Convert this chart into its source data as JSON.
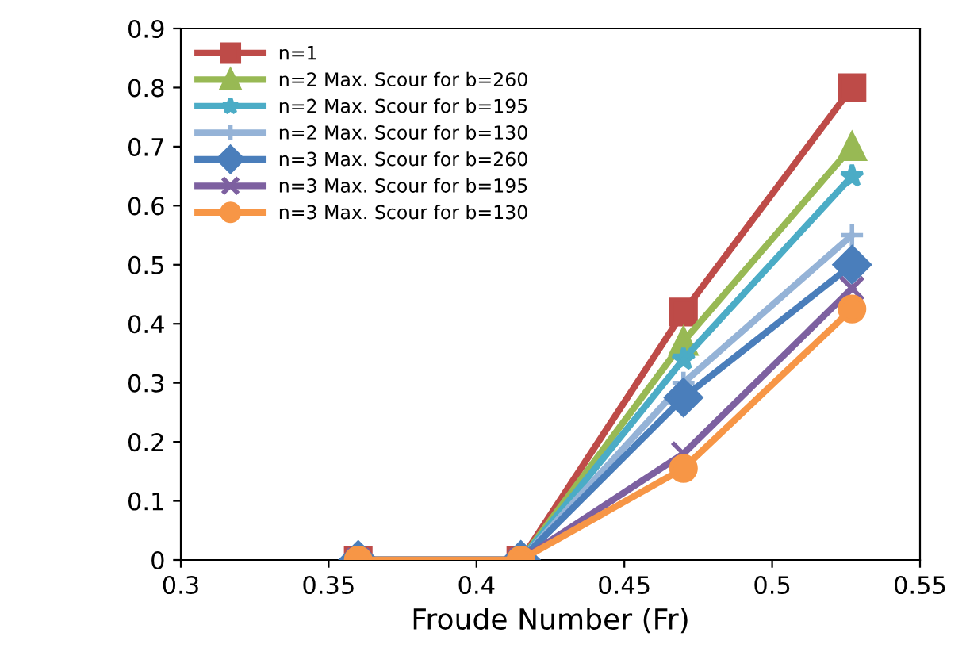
{
  "chart_data": {
    "type": "line",
    "xlabel": "Froude Number (Fr)",
    "x": [
      0.36,
      0.415,
      0.47,
      0.527
    ],
    "xlim": [
      0.3,
      0.55
    ],
    "xticks": [
      0.3,
      0.35,
      0.4,
      0.45,
      0.5,
      0.55
    ],
    "ylim": [
      0,
      0.9
    ],
    "yticks": [
      0,
      0.1,
      0.2,
      0.3,
      0.4,
      0.5,
      0.6,
      0.7,
      0.8,
      0.9
    ],
    "grid": false,
    "legend": "top left",
    "line_style": "solid",
    "series": [
      {
        "name": "n=1",
        "color": "#be4b48",
        "marker": "square",
        "values": [
          0,
          0,
          0.42,
          0.8
        ]
      },
      {
        "name": "n=2 Max. Scour for b=260",
        "color": "#98b954",
        "marker": "triangle",
        "values": [
          0,
          0,
          0.37,
          0.7
        ]
      },
      {
        "name": "n=2 Max. Scour for b=195",
        "color": "#4bacc6",
        "marker": "star",
        "values": [
          0,
          0,
          0.34,
          0.65
        ]
      },
      {
        "name": "n=2 Max. Scour for b=130",
        "color": "#95b3d7",
        "marker": "cross",
        "values": [
          0,
          0,
          0.3,
          0.55
        ]
      },
      {
        "name": "n=3 Max. Scour for b=260",
        "color": "#4a7ebb",
        "marker": "diamond",
        "values": [
          0,
          0,
          0.275,
          0.5
        ]
      },
      {
        "name": "n=3 Max. Scour for b=195",
        "color": "#7d60a0",
        "marker": "cross",
        "values": [
          0,
          0,
          0.18,
          0.46
        ]
      },
      {
        "name": "n=3 Max. Scour for b=130",
        "color": "#f79646",
        "marker": "circle",
        "values": [
          0,
          0,
          0.155,
          0.425
        ]
      }
    ]
  }
}
